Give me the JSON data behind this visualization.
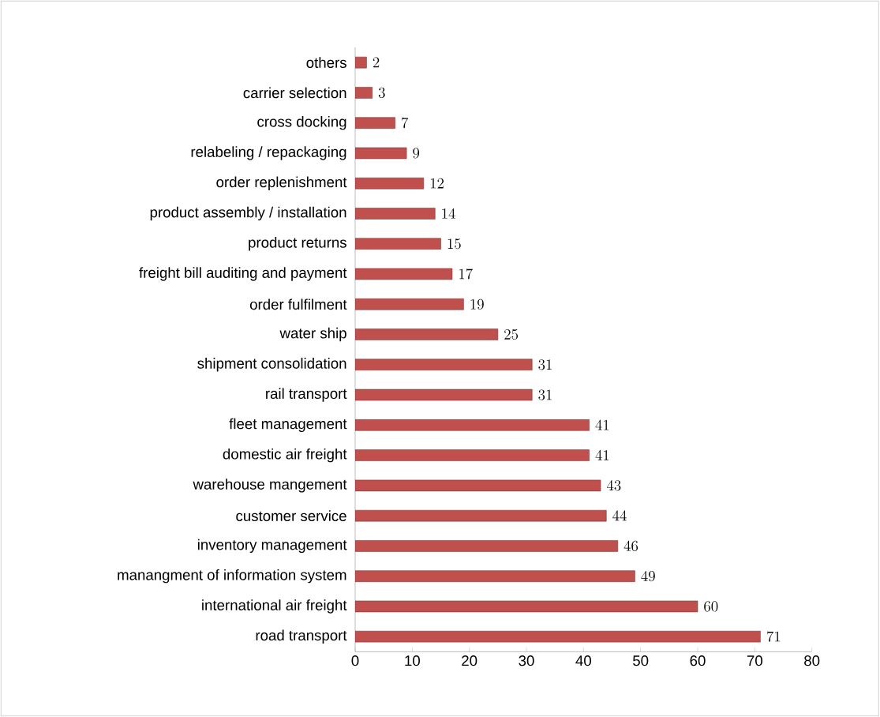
{
  "chart_data": {
    "type": "bar",
    "orientation": "horizontal",
    "categories": [
      "others",
      "carrier selection",
      "cross docking",
      "relabeling / repackaging",
      "order replenishment",
      "product assembly / installation",
      "product returns",
      "freight bill auditing and payment",
      "order fulfilment",
      "water ship",
      "shipment consolidation",
      "rail transport",
      "fleet management",
      "domestic air freight",
      "warehouse mangement",
      "customer service",
      "inventory management",
      "manangment of information system",
      "international air freight",
      "road transport"
    ],
    "values": [
      2,
      3,
      7,
      9,
      12,
      14,
      15,
      17,
      19,
      25,
      31,
      31,
      41,
      41,
      43,
      44,
      46,
      49,
      60,
      71
    ],
    "color": "#c0504d",
    "xlim": [
      0,
      80
    ],
    "xticks": [
      0,
      10,
      20,
      30,
      40,
      50,
      60,
      70,
      80
    ],
    "data_labels": true
  }
}
